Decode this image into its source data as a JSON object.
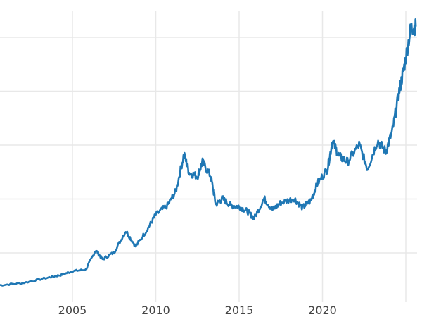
{
  "chart_data": {
    "type": "line",
    "title": "",
    "xlabel": "",
    "ylabel": "",
    "x_ticks": [
      "2005",
      "2010",
      "2015",
      "2020"
    ],
    "x_tick_values": [
      2005,
      2010,
      2015,
      2020
    ],
    "xlim": [
      2000.6,
      2025.6
    ],
    "y_gridlines": [
      1,
      2,
      3,
      4,
      5
    ],
    "y_tick_labels_shown": false,
    "ylim": [
      0.3,
      5.4
    ],
    "grid": true,
    "line_color": "#1f77b4",
    "series": [
      {
        "x": [
          2000.6,
          2002,
          2003.5,
          2004.3,
          2005,
          2005.8,
          2006.4,
          2006.8,
          2007.5,
          2008.2,
          2008.8,
          2009.5,
          2010,
          2010.7,
          2011.2,
          2011.7,
          2012.0,
          2012.5,
          2012.8,
          2013.3,
          2013.6,
          2014,
          2014.5,
          2015,
          2015.5,
          2015.9,
          2016.5,
          2017,
          2017.5,
          2018.3,
          2018.8,
          2019.3,
          2019.7,
          2020.3,
          2020.6,
          2021,
          2021.5,
          2022.2,
          2022.7,
          2023.3,
          2023.8,
          2024.2,
          2024.6,
          2024.9,
          2025.3,
          2025.6
        ],
        "y": [
          0.4,
          0.44,
          0.54,
          0.59,
          0.66,
          0.69,
          1.05,
          0.88,
          1.01,
          1.41,
          1.12,
          1.44,
          1.71,
          1.88,
          2.14,
          2.84,
          2.49,
          2.42,
          2.69,
          2.42,
          1.9,
          2.01,
          1.88,
          1.86,
          1.77,
          1.64,
          2.01,
          1.8,
          1.93,
          2.01,
          1.84,
          1.97,
          2.29,
          2.56,
          3.08,
          2.79,
          2.69,
          3.01,
          2.56,
          3.08,
          2.88,
          3.27,
          3.99,
          4.45,
          5.17,
          5.2
        ]
      }
    ]
  }
}
